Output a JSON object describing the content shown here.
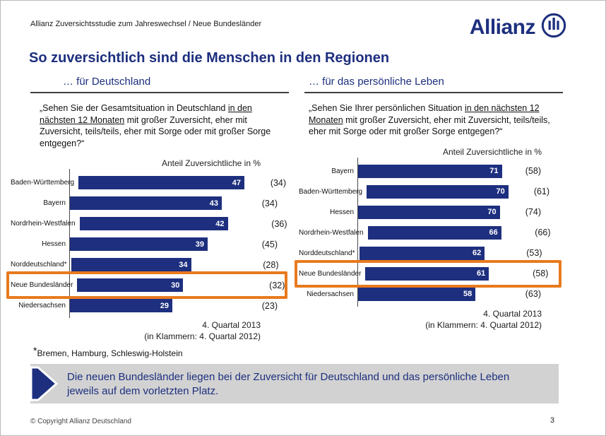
{
  "header": {
    "subtitle": "Allianz Zuversichtsstudie zum Jahreswechsel / Neue Bundesländer",
    "title": "So zuversichtlich sind die Menschen in den Regionen",
    "logo_text": "Allianz"
  },
  "colors": {
    "brand_navy": "#1D2F7E",
    "bar_fill": "#1D2F7E",
    "highlight_orange": "#E87A1E",
    "callout_background": "#D2D2D2"
  },
  "chart_data": [
    {
      "type": "bar",
      "orientation": "horizontal",
      "title": "… für Deutschland",
      "question": {
        "prefix": "„Sehen Sie der Gesamtsituation in Deutschland ",
        "underlined": "in den nächsten 12 Monaten",
        "suffix": " mit großer Zuversicht, eher mit Zuversicht, teils/teils, eher mit Sorge oder mit großer Sorge entgegen?“"
      },
      "value_axis_label": "Anteil Zuversichtliche in %",
      "categories": [
        "Baden-Württemberg",
        "Bayern",
        "Nordrhein-Westfalen",
        "Hessen",
        "Norddeutschland*",
        "Neue Bundesländer",
        "Niedersachsen"
      ],
      "values": [
        47,
        43,
        42,
        39,
        34,
        30,
        29
      ],
      "values_previous": [
        34,
        34,
        36,
        45,
        28,
        32,
        23
      ],
      "highlight_category": "Neue Bundesländer",
      "xlim": [
        0,
        50
      ],
      "grid": false,
      "period_note": [
        "4. Quartal 2013",
        "(in Klammern: 4. Quartal 2012)"
      ]
    },
    {
      "type": "bar",
      "orientation": "horizontal",
      "title": "… für das persönliche Leben",
      "question": {
        "prefix": "„Sehen Sie Ihrer persönlichen Situation ",
        "underlined": "in den nächsten 12 Monaten",
        "suffix": " mit großer Zuversicht, eher mit Zuversicht, teils/teils, eher mit Sorge oder mit großer Sorge entgegen?“"
      },
      "value_axis_label": "Anteil Zuversichtliche in %",
      "categories": [
        "Bayern",
        "Baden-Württemberg",
        "Hessen",
        "Nordrhein-Westfalen",
        "Norddeutschland*",
        "Neue Bundesländer",
        "Niedersachsen"
      ],
      "values": [
        71,
        70,
        70,
        66,
        62,
        61,
        58
      ],
      "values_previous": [
        58,
        61,
        74,
        66,
        53,
        58,
        63
      ],
      "highlight_category": "Neue Bundesländer",
      "xlim": [
        0,
        75
      ],
      "grid": false,
      "period_note": [
        "4. Quartal 2013",
        "(in Klammern: 4. Quartal 2012)"
      ]
    }
  ],
  "footnote": {
    "marker": "*",
    "text": "Bremen, Hamburg, Schleswig-Holstein"
  },
  "callout": {
    "text": "Die neuen Bundesländer liegen bei der Zuversicht für Deutschland und das persönliche Leben jeweils auf dem vorletzten Platz."
  },
  "footer": {
    "copyright": "© Copyright Allianz Deutschland",
    "page_number": "3"
  }
}
